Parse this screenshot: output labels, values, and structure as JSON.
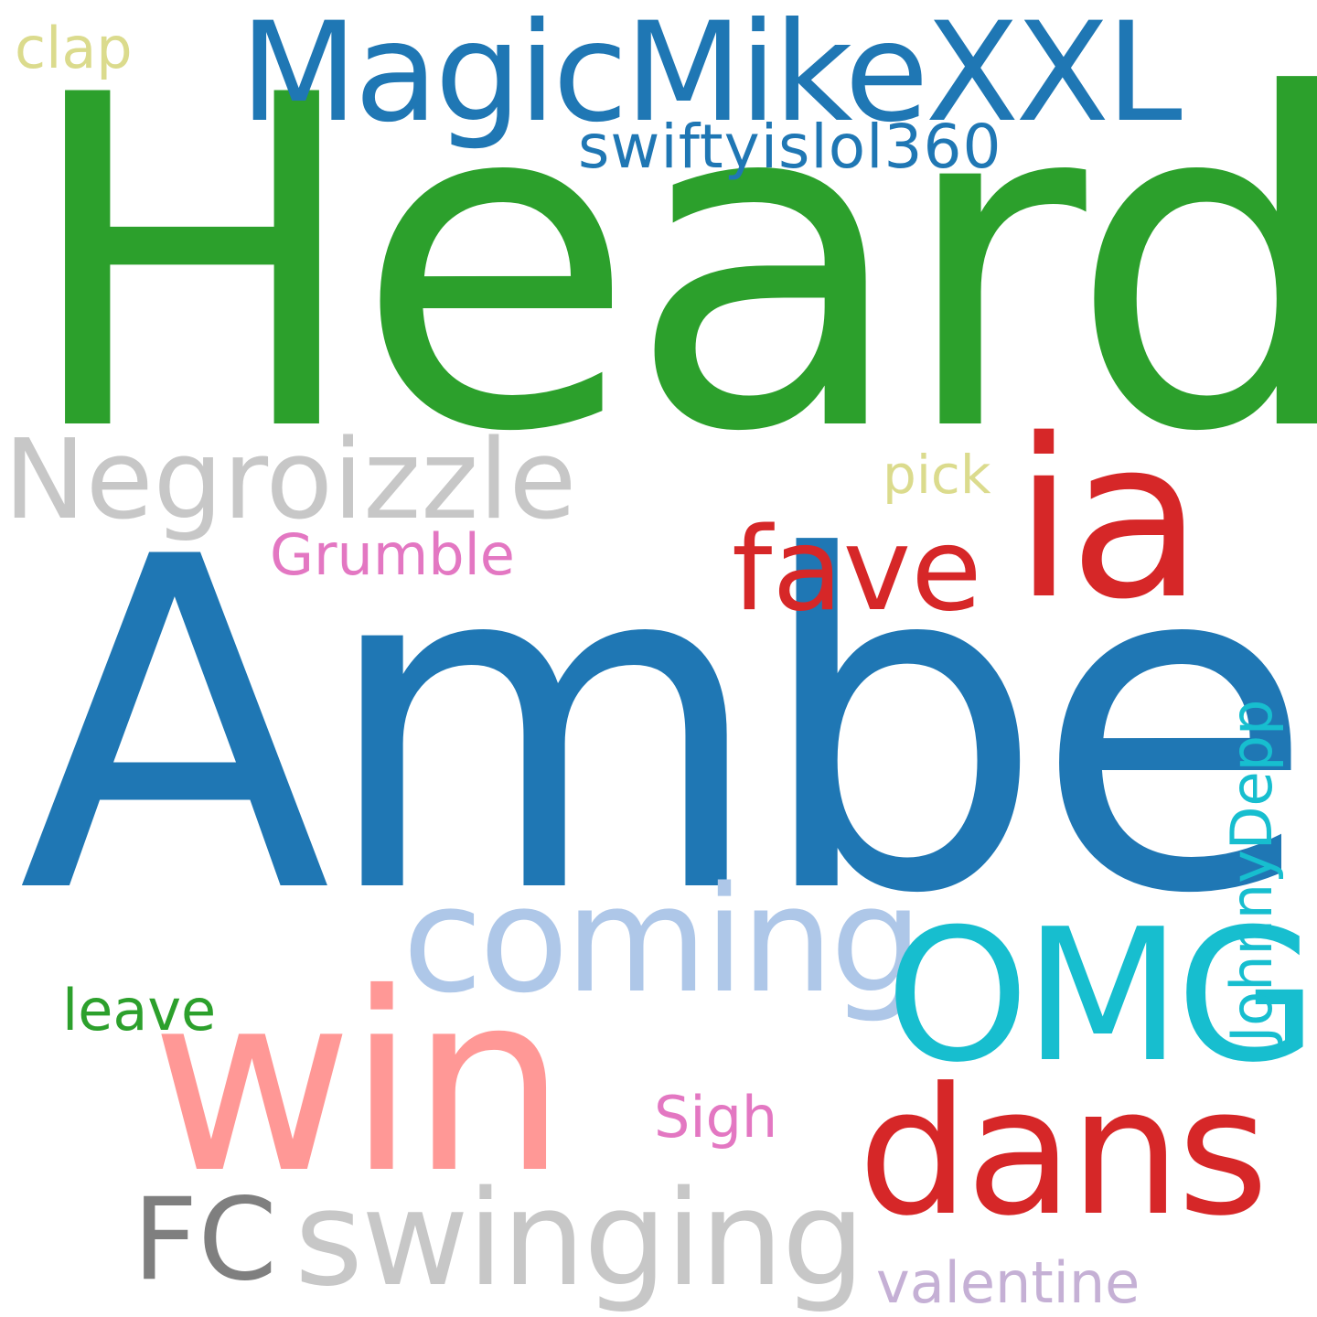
{
  "words": {
    "heard": {
      "text": "Heard",
      "color": "#2ca02c"
    },
    "amber": {
      "text": "Amber",
      "color": "#1f77b4"
    },
    "magicmikexxl": {
      "text": "MagicMikeXXL",
      "color": "#1f77b4"
    },
    "swifty": {
      "text": "swiftyislol360",
      "color": "#1f77b4"
    },
    "negroizzle": {
      "text": "Negroizzle",
      "color": "#c7c7c7"
    },
    "clap": {
      "text": "clap",
      "color": "#dbdb8d"
    },
    "pick": {
      "text": "pick",
      "color": "#dbdb8d"
    },
    "ia": {
      "text": "ia",
      "color": "#d62728"
    },
    "fave": {
      "text": "fave",
      "color": "#d62728"
    },
    "grumble": {
      "text": "Grumble",
      "color": "#e377c2"
    },
    "coming": {
      "text": "coming",
      "color": "#aec7e8"
    },
    "omg": {
      "text": "OMG",
      "color": "#17becf"
    },
    "johnnydepp": {
      "text": "JohnnyDepp",
      "color": "#17becf"
    },
    "leave": {
      "text": "leave",
      "color": "#2ca02c"
    },
    "win": {
      "text": "win",
      "color": "#ff9896"
    },
    "dans": {
      "text": "dans",
      "color": "#d62728"
    },
    "sigh": {
      "text": "Sigh",
      "color": "#e377c2"
    },
    "fc": {
      "text": "FC",
      "color": "#7f7f7f"
    },
    "swinging": {
      "text": "swinging",
      "color": "#c7c7c7"
    },
    "valentine": {
      "text": "valentine",
      "color": "#c5b0d5"
    }
  }
}
